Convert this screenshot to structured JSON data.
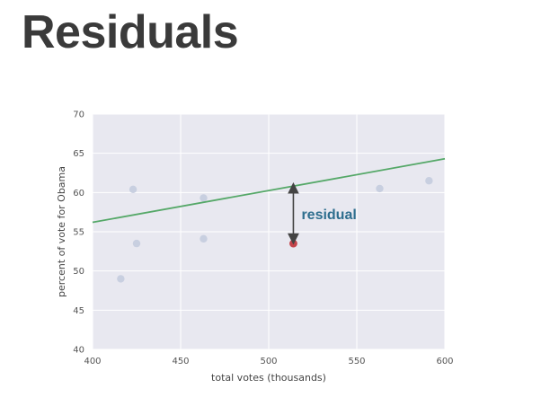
{
  "slide": {
    "title": "Residuals"
  },
  "chart_data": {
    "type": "scatter",
    "title": "",
    "xlabel": "total votes (thousands)",
    "ylabel": "percent of vote for Obama",
    "xlim": [
      400,
      600
    ],
    "ylim": [
      40,
      70
    ],
    "x_ticks": [
      "400",
      "450",
      "500",
      "550",
      "600"
    ],
    "y_ticks": [
      "40",
      "45",
      "50",
      "55",
      "60",
      "65",
      "70"
    ],
    "grid": true,
    "background_color": "#e8e8f0",
    "points": [
      {
        "x": 416,
        "y": 49.0
      },
      {
        "x": 423,
        "y": 60.4
      },
      {
        "x": 425,
        "y": 53.5
      },
      {
        "x": 463,
        "y": 59.3
      },
      {
        "x": 463,
        "y": 54.1
      },
      {
        "x": 563,
        "y": 60.5
      },
      {
        "x": 591,
        "y": 61.5
      }
    ],
    "point_color": "#c8cfe0",
    "highlighted_point": {
      "x": 514,
      "y": 53.5,
      "color": "#c4434a"
    },
    "fit_line": {
      "x": [
        400,
        600
      ],
      "y": [
        56.2,
        64.3
      ],
      "color": "#55a868"
    },
    "annotation": {
      "label": "residual",
      "x": 514,
      "y_from": 60.8,
      "y_to": 53.5,
      "color": "#2e6e8e",
      "arrow_color": "#444444"
    }
  }
}
